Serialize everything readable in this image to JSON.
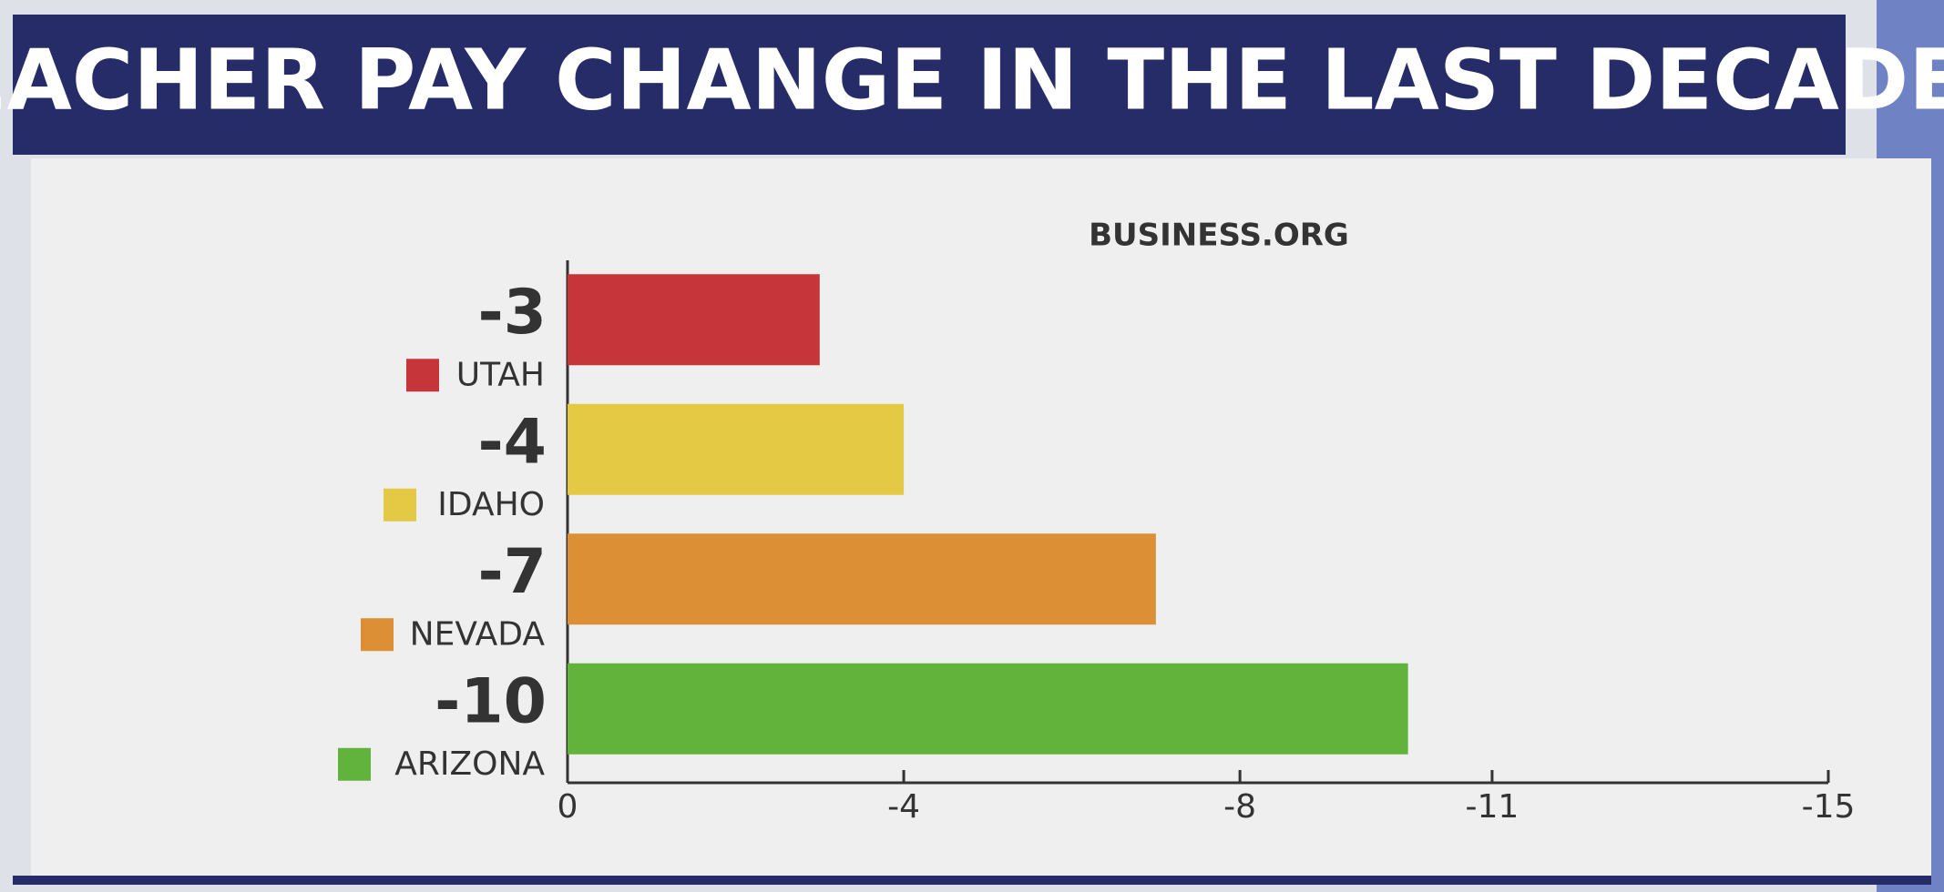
{
  "chart_data": {
    "type": "bar",
    "title": "TEACHER PAY CHANGE IN THE LAST DECADE",
    "source": "BUSINESS.ORG",
    "categories": [
      "UTAH",
      "IDAHO",
      "NEVADA",
      "ARIZONA"
    ],
    "values": [
      -3,
      -4,
      -7,
      -10
    ],
    "colors": [
      "#c5353a",
      "#e4c945",
      "#dc8f35",
      "#62b33c"
    ],
    "xlim": [
      0,
      -15
    ],
    "xticks": [
      0,
      -4,
      -8,
      -11,
      -15
    ],
    "orientation": "horizontal"
  }
}
